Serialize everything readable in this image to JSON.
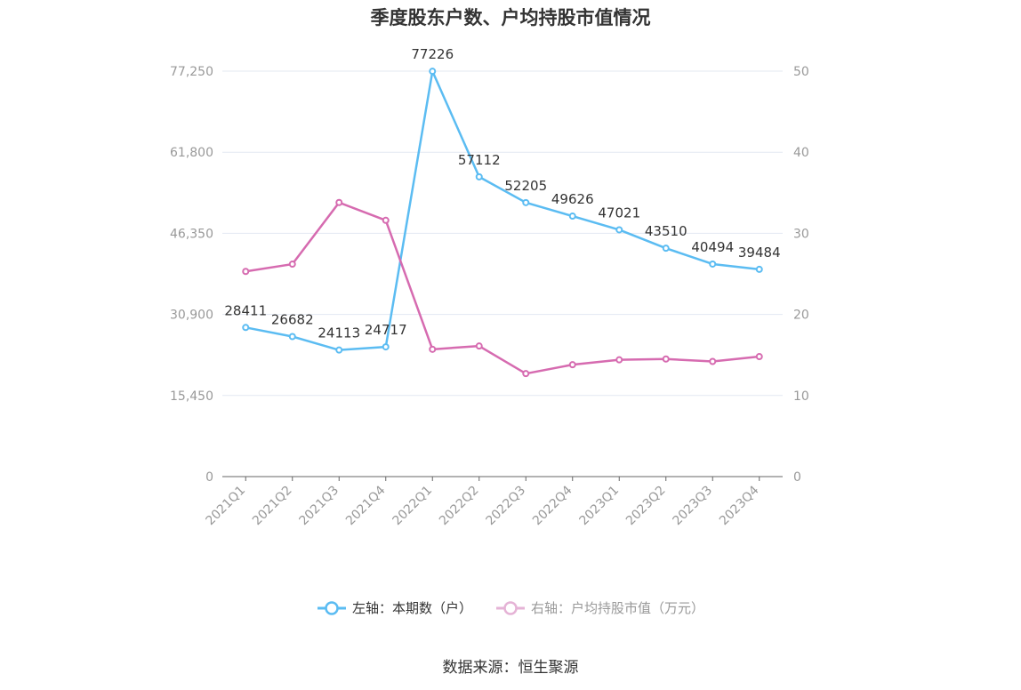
{
  "title": "季度股东户数、户均持股市值情况",
  "source": "数据来源：恒生聚源",
  "colors": {
    "left_series": "#5bbcf2",
    "right_series": "#d66bb0",
    "grid": "#e3e8f2",
    "axis_text": "#999999",
    "label_text": "#333333"
  },
  "chart_data": {
    "type": "line",
    "categories": [
      "2021Q1",
      "2021Q2",
      "2021Q3",
      "2021Q4",
      "2022Q1",
      "2022Q2",
      "2022Q3",
      "2022Q4",
      "2023Q1",
      "2023Q2",
      "2023Q3",
      "2023Q4"
    ],
    "left_axis": {
      "ylim": [
        0,
        77250
      ],
      "ticks": [
        0,
        15450,
        30900,
        46350,
        61800,
        77250
      ],
      "tick_labels": [
        "0",
        "15,450",
        "30,900",
        "46,350",
        "61,800",
        "77,250"
      ]
    },
    "right_axis": {
      "ylim": [
        0,
        50
      ],
      "ticks": [
        0,
        10,
        20,
        30,
        40,
        50
      ],
      "tick_labels": [
        "0",
        "10",
        "20",
        "30",
        "40",
        "50"
      ]
    },
    "series": [
      {
        "name": "左轴：本期数（户）",
        "axis": "left",
        "color": "#5bbcf2",
        "values": [
          28411,
          26682,
          24113,
          24717,
          77226,
          57112,
          52205,
          49626,
          47021,
          43510,
          40494,
          39484
        ],
        "labels": [
          "28411",
          "26682",
          "24113",
          "24717",
          "77226",
          "57112",
          "52205",
          "49626",
          "47021",
          "43510",
          "40494",
          "39484"
        ]
      },
      {
        "name": "右轴：户均持股市值（万元）",
        "axis": "right",
        "color": "#d66bb0",
        "values": [
          25.3,
          26.2,
          33.8,
          31.6,
          15.7,
          16.1,
          12.7,
          13.8,
          14.4,
          14.5,
          14.2,
          14.8
        ]
      }
    ],
    "grid": true,
    "legend_position": "bottom"
  }
}
